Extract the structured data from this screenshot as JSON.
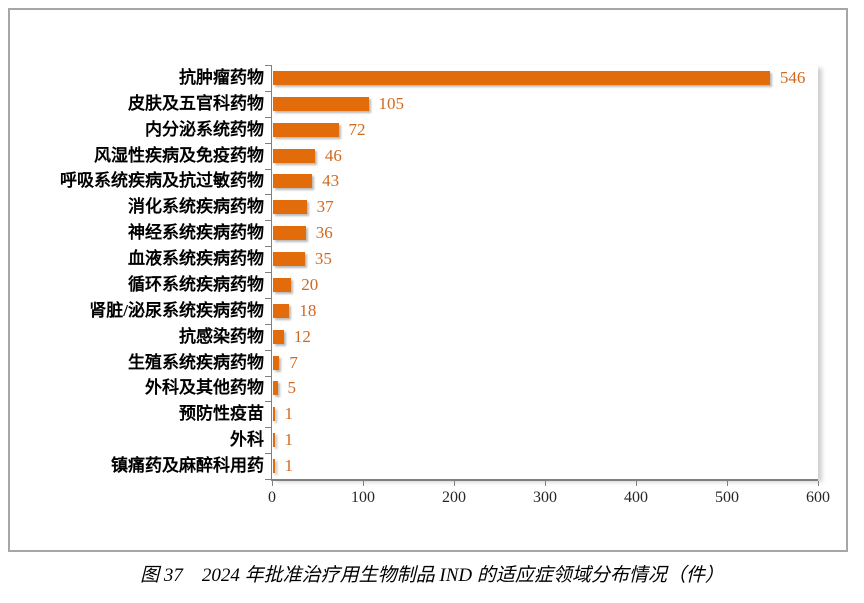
{
  "figure": {
    "caption": "图 37　2024 年批准治疗用生物制品 IND 的适应症领域分布情况（件）"
  },
  "chart_data": {
    "type": "bar",
    "orientation": "horizontal",
    "title": "",
    "xlabel": "",
    "ylabel": "",
    "categories": [
      "抗肿瘤药物",
      "皮肤及五官科药物",
      "内分泌系统药物",
      "风湿性疾病及免疫药物",
      "呼吸系统疾病及抗过敏药物",
      "消化系统疾病药物",
      "神经系统疾病药物",
      "血液系统疾病药物",
      "循环系统疾病药物",
      "肾脏/泌尿系统疾病药物",
      "抗感染药物",
      "生殖系统疾病药物",
      "外科及其他药物",
      "预防性疫苗",
      "外科",
      "镇痛药及麻醉科用药"
    ],
    "values": [
      546,
      105,
      72,
      46,
      43,
      37,
      36,
      35,
      20,
      18,
      12,
      7,
      5,
      1,
      1,
      1
    ],
    "data_labels": true,
    "x_ticks": [
      0,
      100,
      200,
      300,
      400,
      500,
      600
    ],
    "xlim": [
      0,
      600
    ],
    "grid": false,
    "legend_position": "none",
    "bar_color": "#e36c0a",
    "value_label_color": "#d2691e",
    "axis_color": "#808080"
  }
}
